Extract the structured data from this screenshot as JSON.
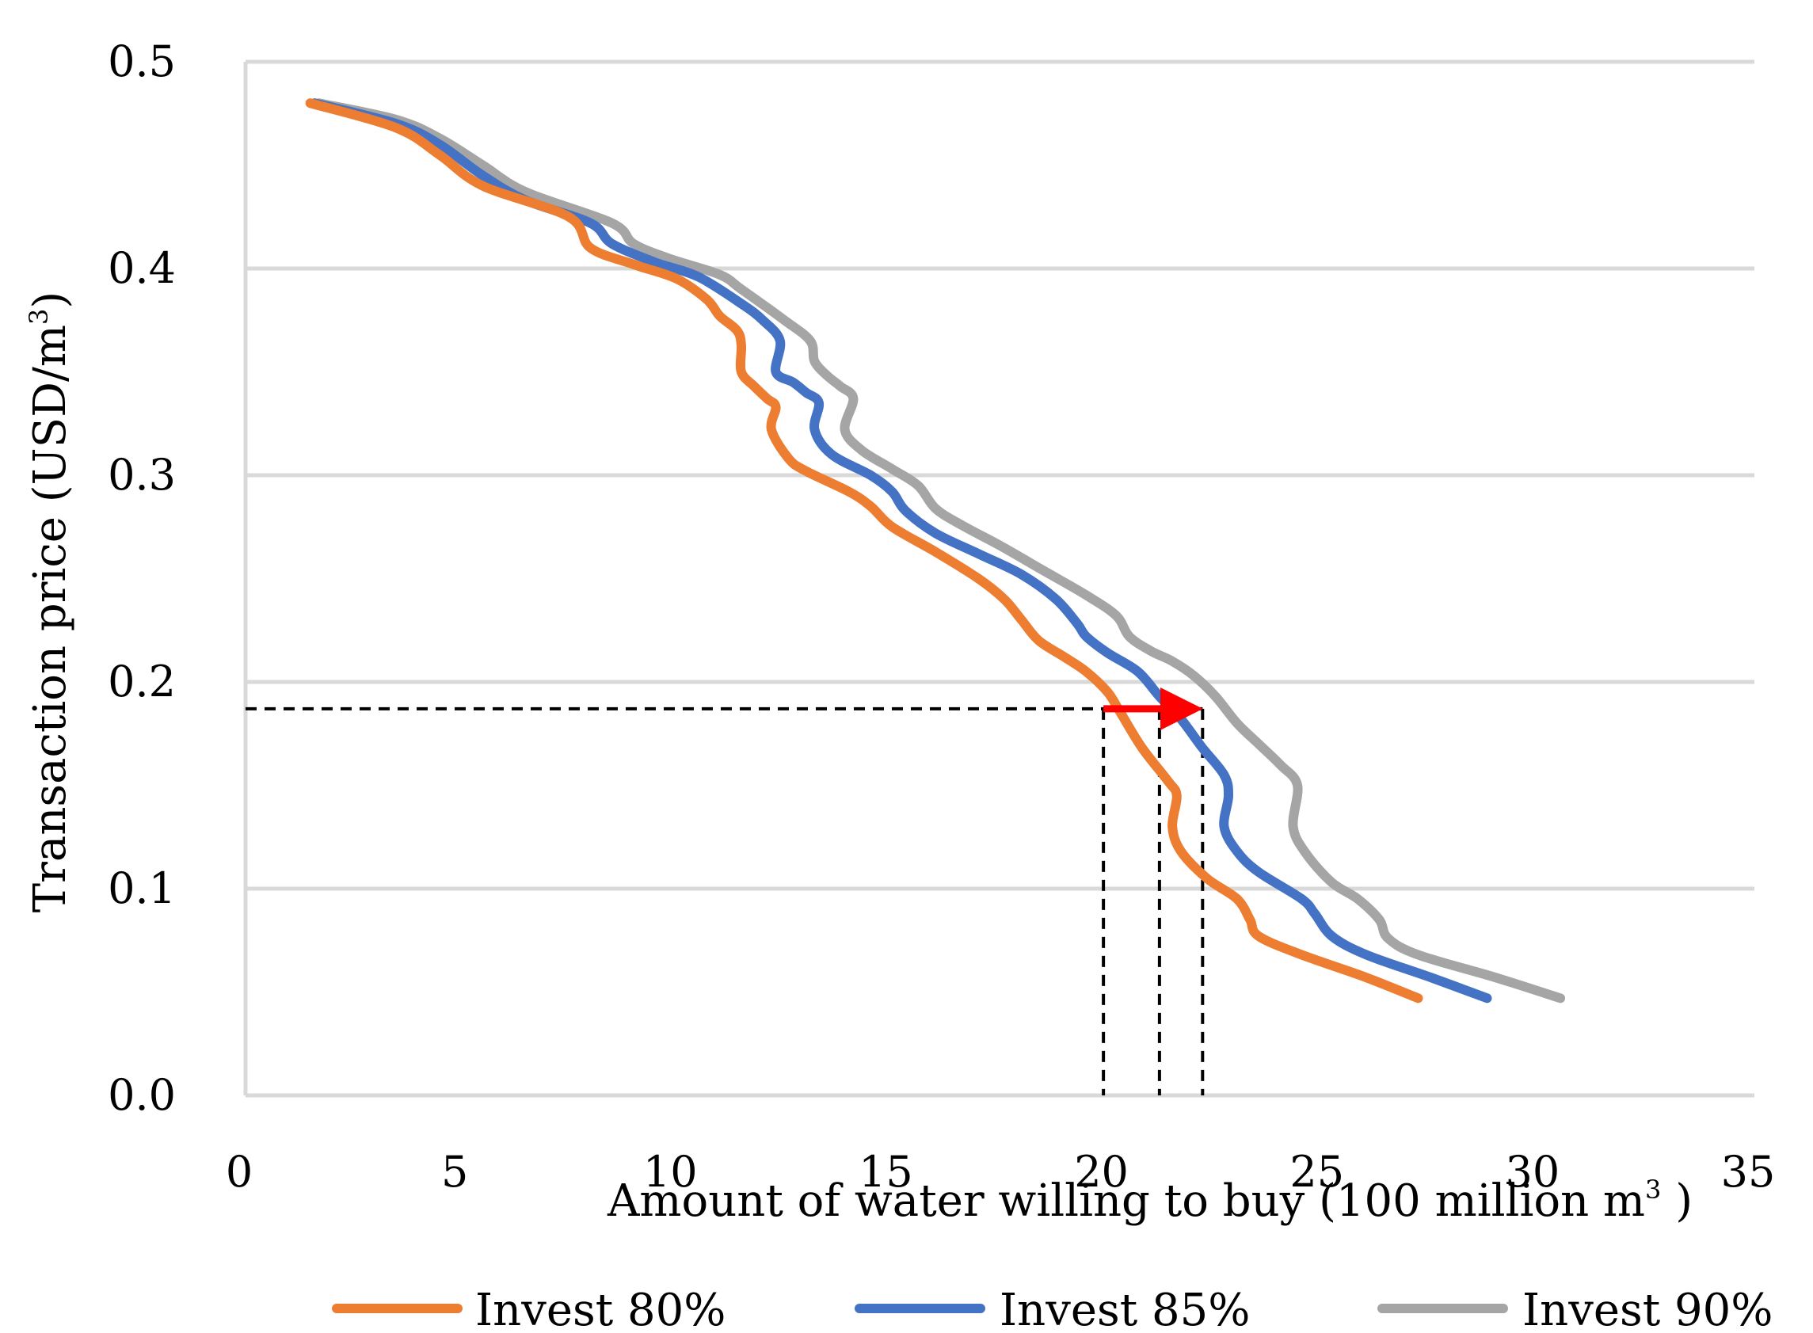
{
  "chart_data": {
    "type": "line",
    "title": "",
    "xlabel_main": "Amount of water willing to buy (100 million m",
    "xlabel_sup": "3",
    "xlabel_end": " )",
    "ylabel_main": "Transaction price (USD/m",
    "ylabel_sup": "3",
    "ylabel_end": ")",
    "xlim": [
      0,
      35
    ],
    "ylim": [
      0,
      0.5
    ],
    "x_ticks": [
      0,
      5,
      10,
      15,
      20,
      25,
      30,
      35
    ],
    "x_tick_labels": [
      "0",
      "5",
      "10",
      "15",
      "20",
      "25",
      "30",
      "35"
    ],
    "y_ticks": [
      0,
      0.1,
      0.2,
      0.3,
      0.4,
      0.5
    ],
    "y_tick_labels": [
      "0.0",
      "0.1",
      "0.2",
      "0.3",
      "0.4",
      "0.5"
    ],
    "grid": "horizontal",
    "legend_position": "bottom",
    "series": [
      {
        "name": "Invest 80%",
        "color": "#ED7D31",
        "points": [
          [
            1.5,
            0.48
          ],
          [
            3.5,
            0.468
          ],
          [
            4.5,
            0.455
          ],
          [
            5.5,
            0.44
          ],
          [
            7.5,
            0.425
          ],
          [
            8.0,
            0.41
          ],
          [
            9,
            0.402
          ],
          [
            10,
            0.395
          ],
          [
            10.7,
            0.385
          ],
          [
            11.0,
            0.377
          ],
          [
            11.4,
            0.37
          ],
          [
            11.5,
            0.363
          ],
          [
            11.5,
            0.35
          ],
          [
            11.8,
            0.343
          ],
          [
            12.1,
            0.337
          ],
          [
            12.3,
            0.333
          ],
          [
            12.2,
            0.322
          ],
          [
            12.6,
            0.308
          ],
          [
            13,
            0.302
          ],
          [
            14,
            0.292
          ],
          [
            14.5,
            0.285
          ],
          [
            15,
            0.275
          ],
          [
            16,
            0.263
          ],
          [
            17,
            0.25
          ],
          [
            17.6,
            0.24
          ],
          [
            18,
            0.23
          ],
          [
            18.4,
            0.22
          ],
          [
            19,
            0.212
          ],
          [
            19.5,
            0.205
          ],
          [
            20,
            0.195
          ],
          [
            20.3,
            0.185
          ],
          [
            20.8,
            0.168
          ],
          [
            21.4,
            0.152
          ],
          [
            21.6,
            0.145
          ],
          [
            21.5,
            0.13
          ],
          [
            21.7,
            0.118
          ],
          [
            22.3,
            0.105
          ],
          [
            23,
            0.095
          ],
          [
            23.3,
            0.085
          ],
          [
            23.5,
            0.077
          ],
          [
            24.5,
            0.068
          ],
          [
            26,
            0.057
          ],
          [
            27.2,
            0.047
          ]
        ]
      },
      {
        "name": "Invest 85%",
        "color": "#4472C4",
        "points": [
          [
            1.6,
            0.48
          ],
          [
            3.5,
            0.47
          ],
          [
            4.5,
            0.46
          ],
          [
            5.5,
            0.445
          ],
          [
            6.5,
            0.433
          ],
          [
            8,
            0.422
          ],
          [
            8.5,
            0.412
          ],
          [
            9.5,
            0.403
          ],
          [
            10.5,
            0.396
          ],
          [
            11.5,
            0.383
          ],
          [
            12,
            0.375
          ],
          [
            12.4,
            0.365
          ],
          [
            12.3,
            0.35
          ],
          [
            12.7,
            0.345
          ],
          [
            13.0,
            0.34
          ],
          [
            13.3,
            0.335
          ],
          [
            13.2,
            0.322
          ],
          [
            13.6,
            0.31
          ],
          [
            14.5,
            0.3
          ],
          [
            15,
            0.292
          ],
          [
            15.3,
            0.283
          ],
          [
            16,
            0.272
          ],
          [
            17,
            0.262
          ],
          [
            18,
            0.252
          ],
          [
            18.8,
            0.24
          ],
          [
            19.3,
            0.228
          ],
          [
            19.5,
            0.222
          ],
          [
            20,
            0.214
          ],
          [
            20.7,
            0.205
          ],
          [
            21.2,
            0.193
          ],
          [
            21.7,
            0.182
          ],
          [
            22.2,
            0.168
          ],
          [
            22.7,
            0.155
          ],
          [
            22.8,
            0.145
          ],
          [
            22.7,
            0.13
          ],
          [
            23,
            0.118
          ],
          [
            23.5,
            0.108
          ],
          [
            24.5,
            0.095
          ],
          [
            24.8,
            0.088
          ],
          [
            25.2,
            0.077
          ],
          [
            26,
            0.068
          ],
          [
            27.5,
            0.057
          ],
          [
            28.8,
            0.047
          ]
        ]
      },
      {
        "name": "Invest 90%",
        "color": "#A5A5A5",
        "points": [
          [
            1.7,
            0.48
          ],
          [
            3.5,
            0.472
          ],
          [
            4.5,
            0.463
          ],
          [
            5.5,
            0.45
          ],
          [
            6.5,
            0.437
          ],
          [
            8.5,
            0.422
          ],
          [
            9.0,
            0.412
          ],
          [
            9.8,
            0.405
          ],
          [
            11.0,
            0.397
          ],
          [
            11.5,
            0.39
          ],
          [
            12.5,
            0.375
          ],
          [
            13.1,
            0.365
          ],
          [
            13.2,
            0.355
          ],
          [
            13.5,
            0.348
          ],
          [
            13.8,
            0.343
          ],
          [
            14.1,
            0.337
          ],
          [
            13.9,
            0.322
          ],
          [
            14.3,
            0.312
          ],
          [
            15,
            0.303
          ],
          [
            15.6,
            0.295
          ],
          [
            16,
            0.284
          ],
          [
            16.6,
            0.276
          ],
          [
            17.5,
            0.266
          ],
          [
            18.5,
            0.254
          ],
          [
            19.5,
            0.242
          ],
          [
            20.2,
            0.232
          ],
          [
            20.5,
            0.222
          ],
          [
            21.0,
            0.215
          ],
          [
            21.5,
            0.21
          ],
          [
            22.0,
            0.203
          ],
          [
            22.5,
            0.193
          ],
          [
            23,
            0.18
          ],
          [
            23.5,
            0.17
          ],
          [
            24,
            0.16
          ],
          [
            24.4,
            0.15
          ],
          [
            24.3,
            0.13
          ],
          [
            24.6,
            0.117
          ],
          [
            25.2,
            0.103
          ],
          [
            25.8,
            0.095
          ],
          [
            26.3,
            0.085
          ],
          [
            26.5,
            0.076
          ],
          [
            27.2,
            0.068
          ],
          [
            29,
            0.057
          ],
          [
            30.5,
            0.047
          ]
        ]
      }
    ],
    "annotations": {
      "reference_price": 0.187,
      "reference_x": [
        19.9,
        21.2,
        22.2
      ],
      "arrow_from_x": 19.9,
      "arrow_to_x": 22.2,
      "arrow_color": "#FF0000",
      "guide_color": "#000000"
    }
  }
}
